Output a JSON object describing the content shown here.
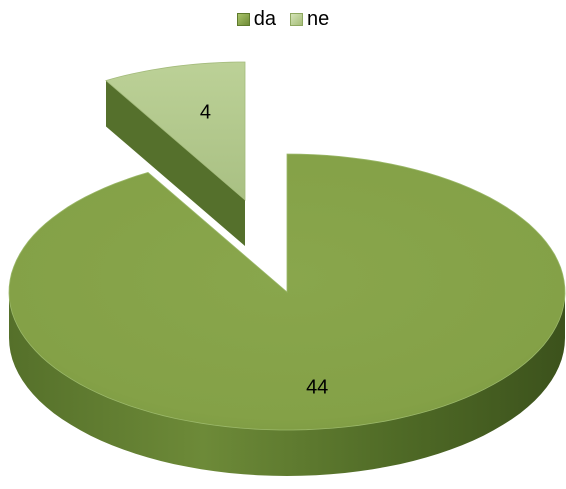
{
  "chart_data": {
    "type": "pie",
    "style": "3d-exploded",
    "legend_position": "top",
    "series": [
      {
        "name": "da",
        "value": 44,
        "color": "#86a34a"
      },
      {
        "name": "ne",
        "value": 4,
        "color": "#b5cc8e"
      }
    ],
    "data_labels": [
      "44",
      "4"
    ]
  }
}
